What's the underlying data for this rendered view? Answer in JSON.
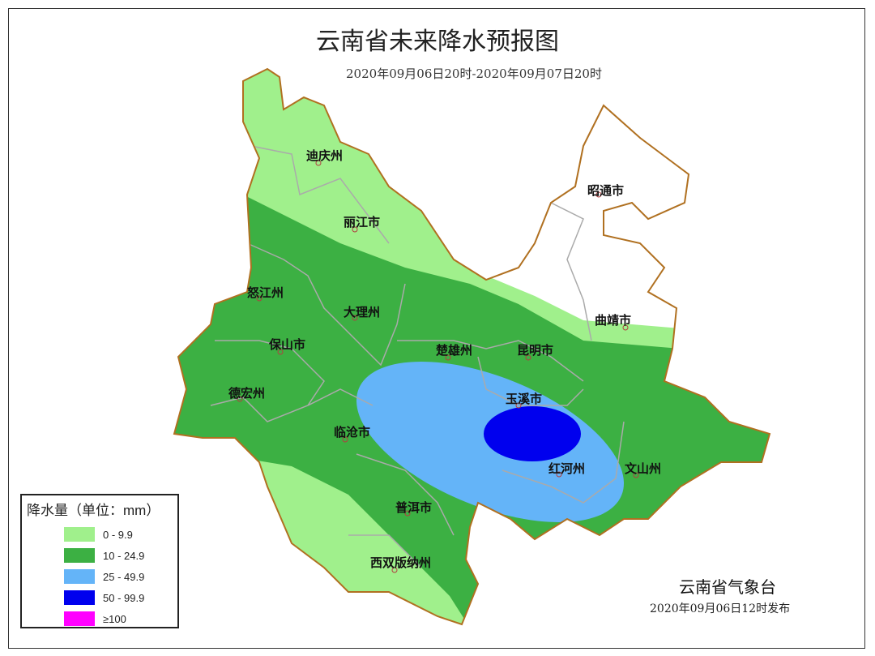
{
  "title": "云南省未来降水预报图",
  "subtitle": "2020年09月06日20时-2020年09月07日20时",
  "cities": [
    "迪庆州",
    "丽江市",
    "怒江州",
    "大理州",
    "保山市",
    "德宏州",
    "临沧市",
    "楚雄州",
    "昆明市",
    "昭通市",
    "曲靖市",
    "玉溪市",
    "红河州",
    "文山州",
    "普洱市",
    "西双版纳州"
  ],
  "legend": {
    "title": "降水量（单位：mm）",
    "items": [
      {
        "label": "0 - 9.9",
        "color": "#a0f08c"
      },
      {
        "label": "10 - 24.9",
        "color": "#3cb043"
      },
      {
        "label": "25 - 49.9",
        "color": "#64b4f8"
      },
      {
        "label": "50 - 99.9",
        "color": "#0000ee"
      },
      {
        "label": "≥100",
        "color": "#ff00ff"
      }
    ]
  },
  "agency": "云南省气象台",
  "issued": "2020年09月06日12时发布",
  "colors": {
    "border": "#b07020",
    "county_lines": "#aaaaaa"
  }
}
